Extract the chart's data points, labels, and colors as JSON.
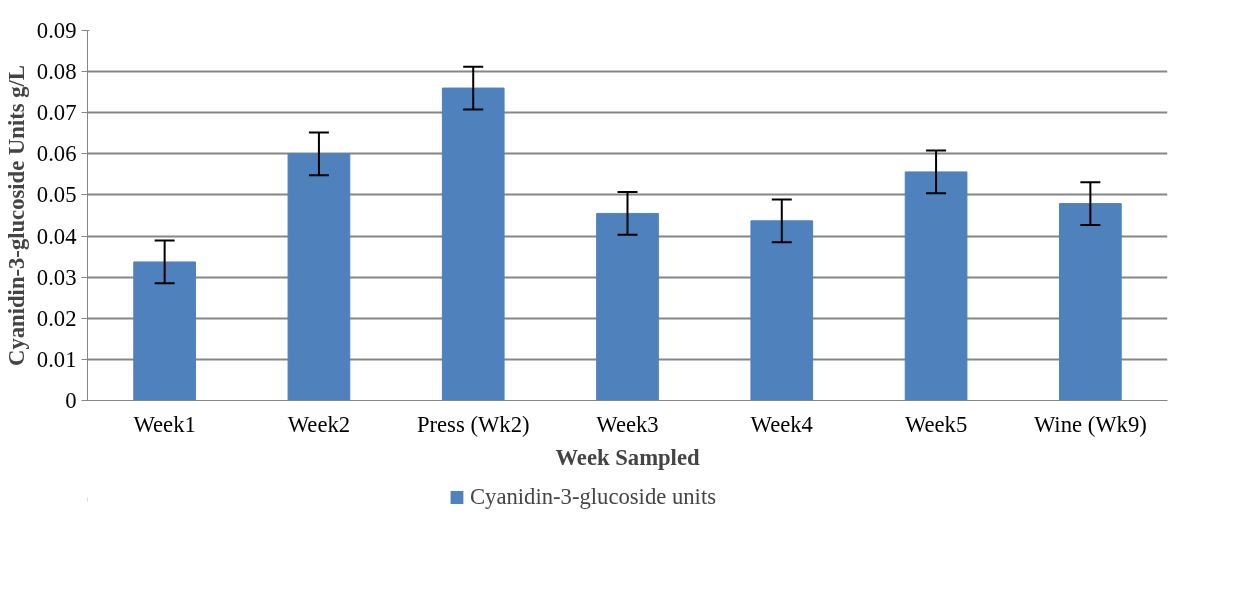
{
  "chart_data": {
    "type": "bar",
    "xlabel": "Week Sampled",
    "ylabel": "Cyanidin-3-glucoside Units g/L",
    "categories": [
      "Week1",
      "Week2",
      "Press (Wk2)",
      "Week3",
      "Week4",
      "Week5",
      "Wine (Wk9)"
    ],
    "series": [
      {
        "name": "Cyanidin-3-glucoside units",
        "color": "#4f81bd",
        "values": [
          0.0337,
          0.06,
          0.076,
          0.0455,
          0.0437,
          0.0556,
          0.0479
        ],
        "errors": [
          0.0052,
          0.0052,
          0.0052,
          0.0052,
          0.0052,
          0.0052,
          0.0052
        ]
      }
    ],
    "ylim": [
      0,
      0.09
    ],
    "yticks": [
      0,
      0.01,
      0.02,
      0.03,
      0.04,
      0.05,
      0.06,
      0.07,
      0.08,
      0.09
    ],
    "grid": "y",
    "legend": "bottom"
  }
}
